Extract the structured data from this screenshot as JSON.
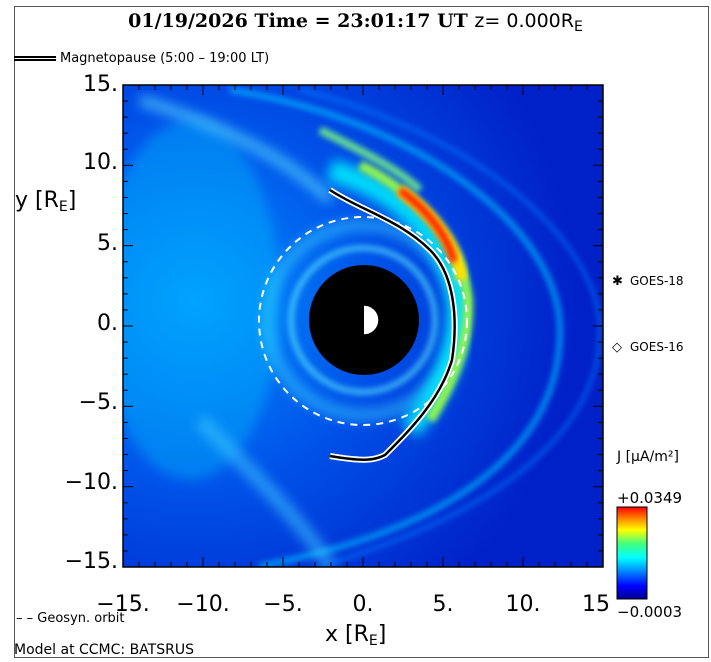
{
  "header": {
    "title": "01/19/2026 Time = 23:01:17 UT",
    "z_label": "z= 0.000R",
    "z_sub": "E"
  },
  "legend": {
    "magnetopause": "Magnetopause (5:00 – 19:00 LT)"
  },
  "axes": {
    "y_ticks": [
      "15.",
      "10.",
      "5.",
      "0.",
      "−5.",
      "−10.",
      "−15."
    ],
    "x_ticks": [
      "−15.",
      "−10.",
      "−5.",
      "0.",
      "5.",
      "10.",
      "15"
    ],
    "y_label": "y [R",
    "x_label": "x [R",
    "unit_sub": "E",
    "unit_close": "]",
    "range": [
      -15,
      15
    ]
  },
  "satellites": [
    {
      "name": "GOES-18",
      "marker": "✱"
    },
    {
      "name": "GOES-16",
      "marker": "◇"
    }
  ],
  "colorbar": {
    "label": "J [µA/m²]",
    "max": "+0.0349",
    "min": "−0.0003",
    "colors": [
      "#00008f",
      "#0000ff",
      "#00a0ff",
      "#00ffff",
      "#40ff80",
      "#ffff00",
      "#ff8000",
      "#ff0000"
    ]
  },
  "geosyn_label": "– – Geosyn. orbit",
  "footer": "Model at CCMC: BATSRUS"
}
